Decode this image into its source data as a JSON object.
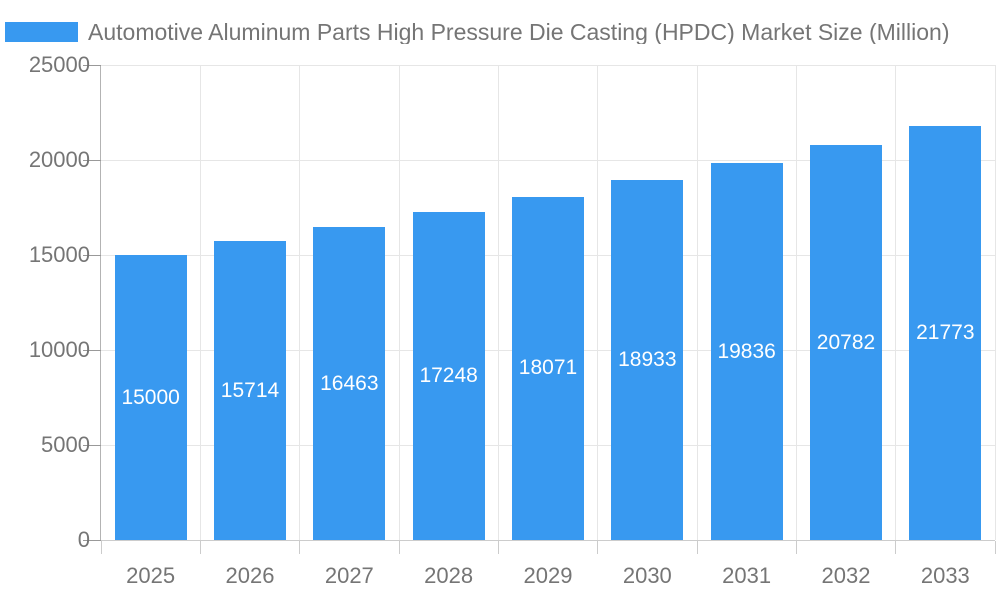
{
  "legend": {
    "label": "Automotive Aluminum Parts High Pressure Die Casting (HPDC) Market Size (Million)"
  },
  "colors": {
    "bar": "#3899F0",
    "axis_text": "#757575",
    "grid": "#e6e6e6",
    "y_axis_line": "#b3b3b3",
    "x_axis_line": "#cccccc",
    "y_tick": "#999999",
    "x_tick": "#cccccc",
    "bar_label": "#ffffff",
    "background": "#ffffff"
  },
  "chart_data": {
    "type": "bar",
    "title": "Automotive Aluminum Parts High Pressure Die Casting (HPDC) Market Size (Million)",
    "categories": [
      "2025",
      "2026",
      "2027",
      "2028",
      "2029",
      "2030",
      "2031",
      "2032",
      "2033"
    ],
    "values": [
      15000,
      15714,
      16463,
      17248,
      18071,
      18933,
      19836,
      20782,
      21773
    ],
    "xlabel": "",
    "ylabel": "",
    "ylim": [
      0,
      25000
    ],
    "yticks": [
      0,
      5000,
      10000,
      15000,
      20000,
      25000
    ],
    "ytick_labels": [
      "0",
      "5000",
      "10000",
      "15000",
      "20000",
      "25000"
    ],
    "grid": "horizontal-and-vertical",
    "legend_position": "top-left",
    "bar_color": "#3899F0",
    "data_label_color": "#ffffff",
    "data_label_position": "inside-center"
  }
}
